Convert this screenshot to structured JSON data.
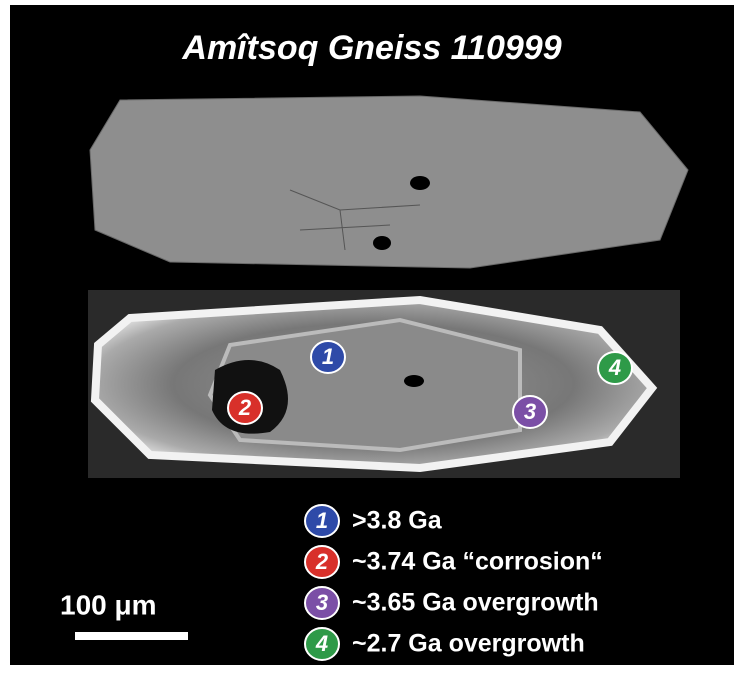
{
  "title": "Amîtsoq Gneiss 110999",
  "markers": [
    {
      "label": "1",
      "color": "#2e4aa8"
    },
    {
      "label": "2",
      "color": "#d8302a"
    },
    {
      "label": "3",
      "color": "#7b4fa6"
    },
    {
      "label": "4",
      "color": "#2e9a48"
    }
  ],
  "legend": [
    ">3.8 Ga",
    "~3.74 Ga “corrosion“",
    "~3.65 Ga overgrowth",
    "~2.7 Ga overgrowth"
  ],
  "scale_bar": {
    "label": "100 μm"
  }
}
